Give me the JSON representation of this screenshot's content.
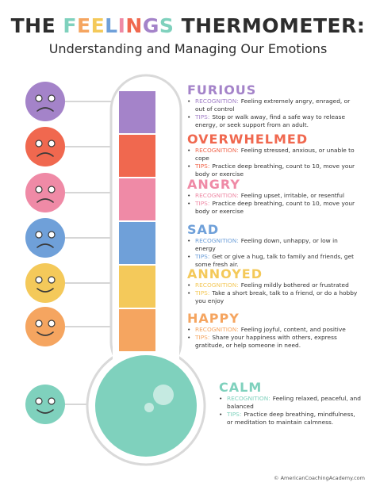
{
  "header": {
    "title_before": "THE",
    "title_highlight": "FEELINGS",
    "title_after": "THERMOMETER:",
    "subtitle": "Understanding and Managing Our Emotions"
  },
  "labels": {
    "recognition": "RECOGNITION:",
    "tips": "TIPS:"
  },
  "emotions": [
    {
      "name": "FURIOUS",
      "color": "#a483c9",
      "recognition": "Feeling extremely angry, enraged, or out of control",
      "tips": "Stop or walk away, find a safe way to release energy, or seek support from an adult."
    },
    {
      "name": "OVERWHELMED",
      "color": "#f0684f",
      "recognition": "Feeling stressed, anxious, or unable to cope",
      "tips": "Practice deep breathing, count to 10, move your body or exercise"
    },
    {
      "name": "ANGRY",
      "color": "#ef8aa6",
      "recognition": "Feeling upset, irritable, or resentful",
      "tips": "Practice deep breathing, count to 10, move your body or exercise"
    },
    {
      "name": "SAD",
      "color": "#6fa0d9",
      "recognition": "Feeling down, unhappy, or low in energy",
      "tips": "Get or give a hug, talk to family and friends, get some fresh air."
    },
    {
      "name": "ANNOYED",
      "color": "#f4c95a",
      "recognition": "Feeling mildly bothered or frustrated",
      "tips": "Take a short break, talk to a friend, or do a hobby you enjoy"
    },
    {
      "name": "HAPPY",
      "color": "#f5a560",
      "recognition": "Feeling joyful, content, and positive",
      "tips": "Share your happiness with others, express gratitude, or help someone in need."
    },
    {
      "name": "CALM",
      "color": "#7fd1bd",
      "recognition": "Feeling relaxed, peaceful, and balanced",
      "tips": "Practice deep breathing, mindfulness, or meditation to maintain calmness."
    }
  ],
  "footer": "© AmericanCoachingAcademy.com"
}
